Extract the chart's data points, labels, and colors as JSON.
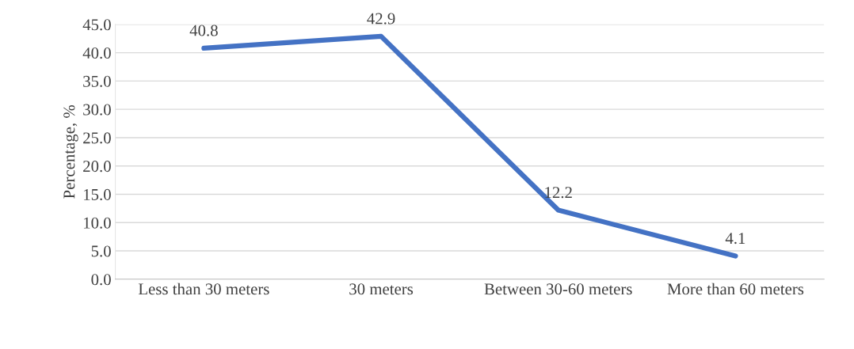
{
  "chart_data": {
    "type": "line",
    "ylabel": "Percentage, %",
    "categories": [
      "Less than 30 meters",
      "30 meters",
      "Between 30-60 meters",
      "More than 60 meters"
    ],
    "series": [
      {
        "color": "#4472c4",
        "values": [
          40.8,
          42.9,
          12.2,
          4.1
        ]
      }
    ],
    "ylim": [
      0,
      45
    ],
    "yticks": [
      {
        "value": 0,
        "label": "0.0"
      },
      {
        "value": 5,
        "label": "5.0"
      },
      {
        "value": 10,
        "label": "10.0"
      },
      {
        "value": 15,
        "label": "15.0"
      },
      {
        "value": 20,
        "label": "20.0"
      },
      {
        "value": 25,
        "label": "25.0"
      },
      {
        "value": 30,
        "label": "30.0"
      },
      {
        "value": 35,
        "label": "35.0"
      },
      {
        "value": 40,
        "label": "40.0"
      },
      {
        "value": 45,
        "label": "45.0"
      }
    ],
    "grid": "y",
    "data_labels": true,
    "marker": "none",
    "line_style": "solid"
  }
}
